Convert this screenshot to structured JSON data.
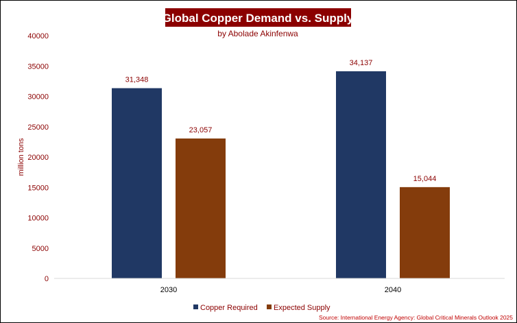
{
  "colors": {
    "title_bg": "#8B0000",
    "text": "#8B0000",
    "copper_required": "#203864",
    "expected_supply": "#843C0C",
    "axis": "#d9d9d9"
  },
  "chart_data": {
    "type": "bar",
    "title": "Global Copper Demand vs. Supply",
    "subtitle": "by Abolade Akinfenwa",
    "ylabel": "million tons",
    "xlabel": "",
    "ylim": [
      0,
      40000
    ],
    "yticks": [
      0,
      5000,
      10000,
      15000,
      20000,
      25000,
      30000,
      35000,
      40000
    ],
    "grid": false,
    "categories": [
      "2030",
      "2040"
    ],
    "series": [
      {
        "name": "Copper Required",
        "values": [
          31348,
          34137
        ],
        "labels": [
          "31,348",
          "34,137"
        ],
        "color": "#203864"
      },
      {
        "name": "Expected Supply",
        "values": [
          23057,
          15044
        ],
        "labels": [
          "23,057",
          "15,044"
        ],
        "color": "#843C0C"
      }
    ],
    "legend": "bottom",
    "source": "Source: International Energy Agency: Global Critical Minerals Outlook 2025"
  }
}
